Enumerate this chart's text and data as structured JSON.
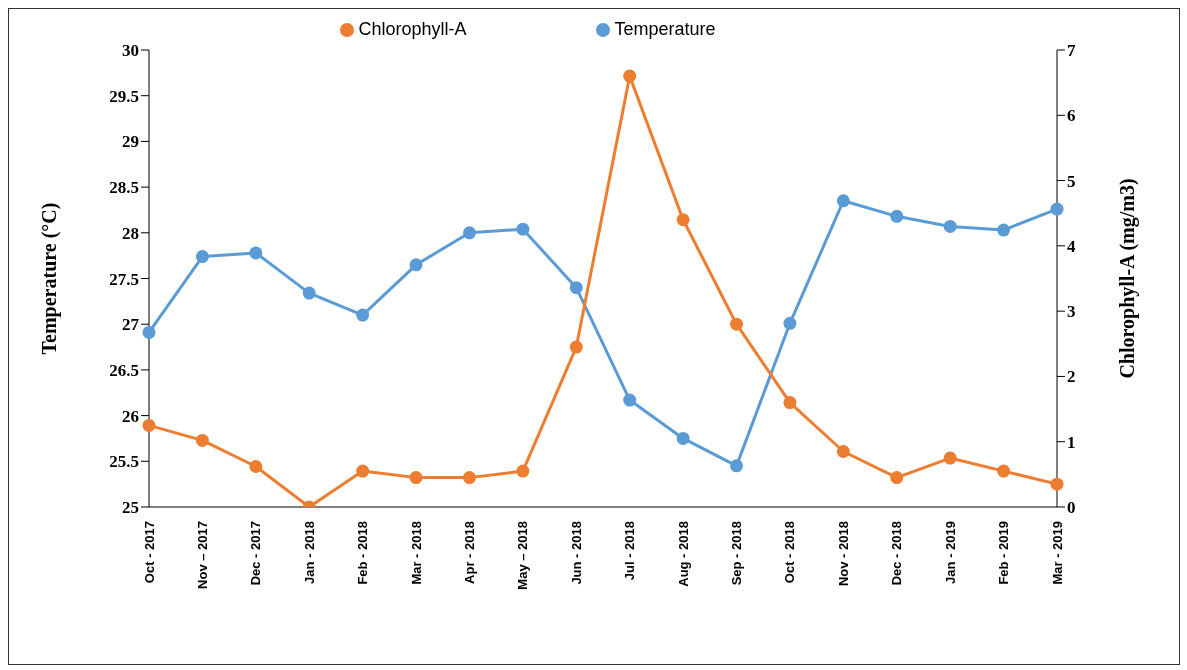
{
  "chart_data": {
    "type": "line",
    "categories": [
      "Oct - 2017",
      "Nov – 2017",
      "Dec - 2017",
      "Jan - 2018",
      "Feb - 2018",
      "Mar - 2018",
      "Apr - 2018",
      "May – 2018",
      "Jun - 2018",
      "Jul - 2018",
      "Aug - 2018",
      "Sep - 2018",
      "Oct - 2018",
      "Nov - 2018",
      "Dec - 2018",
      "Jan - 2019",
      "Feb - 2019",
      "Mar - 2019"
    ],
    "series": [
      {
        "name": "Temperature",
        "color": "#5b9bd5",
        "values": [
          26.91,
          27.74,
          27.78,
          27.34,
          27.1,
          27.65,
          28.0,
          28.04,
          27.4,
          26.17,
          25.75,
          25.45,
          27.01,
          28.35,
          28.18,
          28.07,
          28.03,
          28.26
        ]
      },
      {
        "name": "Chlorophyll-A",
        "color": "#ed7d31",
        "axis": "y2",
        "values": [
          1.25,
          1.02,
          0.62,
          0.0,
          0.55,
          0.45,
          0.45,
          0.55,
          2.45,
          6.6,
          4.4,
          2.8,
          1.6,
          0.85,
          0.45,
          0.75,
          0.55,
          0.35
        ]
      }
    ],
    "ylabel": "Temperature (°C)",
    "y2label": "Chlorophyll-A (mg/m3)",
    "ylim": [
      25,
      30
    ],
    "yticks": [
      25,
      25.5,
      26,
      26.5,
      27,
      27.5,
      28,
      28.5,
      29,
      29.5,
      30
    ],
    "y2lim": [
      0,
      7
    ],
    "y2ticks": [
      0,
      1,
      2,
      3,
      4,
      5,
      6,
      7
    ],
    "grid": false,
    "legend": "top",
    "marker": "circle",
    "line_style": "solid"
  }
}
